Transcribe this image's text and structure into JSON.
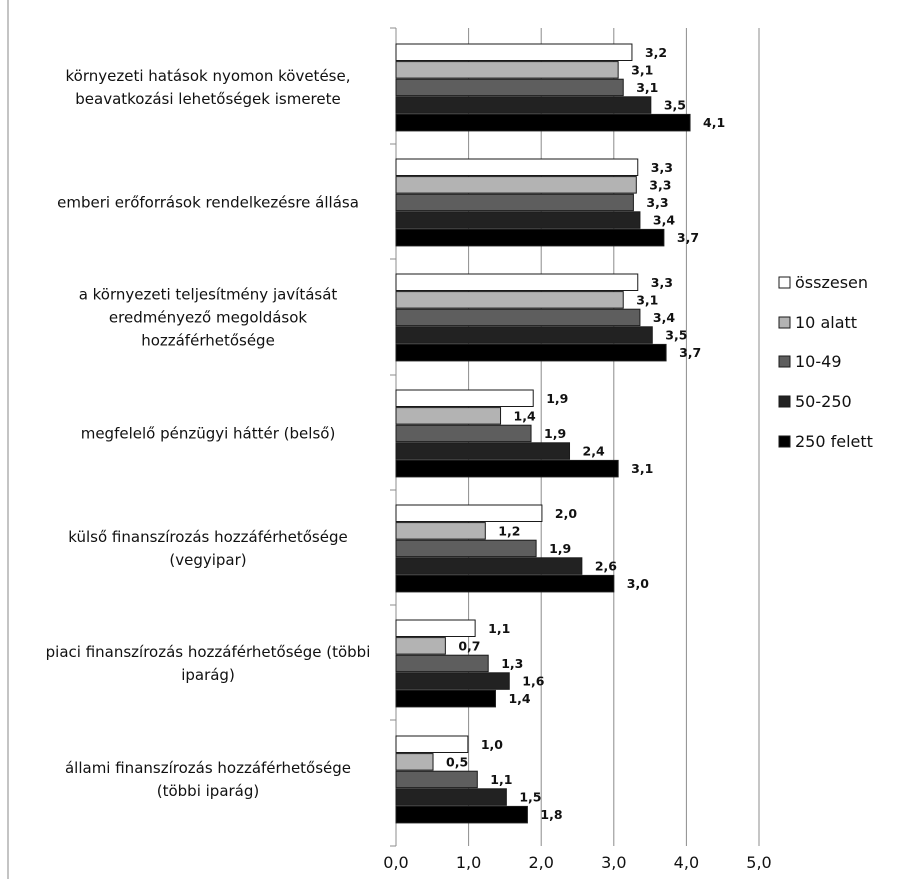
{
  "chart_data": {
    "type": "bar",
    "orientation": "horizontal",
    "categories": [
      [
        "környezeti hatások nyomon követése,",
        "beavatkozási lehetőségek ismerete"
      ],
      [
        "emberi erőforrások rendelkezésre állása"
      ],
      [
        "a környezeti teljesítmény  javítását",
        "eredményező megoldások",
        "hozzáférhetősége"
      ],
      [
        "megfelelő pénzügyi háttér (belső)"
      ],
      [
        "külső finanszírozás hozzáférhetősége",
        "(vegyipar)"
      ],
      [
        "piaci finanszírozás hozzáférhetősége (többi",
        "iparág)"
      ],
      [
        "állami finanszírozás hozzáférhetősége",
        "(többi iparág)"
      ]
    ],
    "series": [
      {
        "name": "összesen",
        "color": "#ffffff",
        "values": [
          3.25,
          3.33,
          3.33,
          1.89,
          2.01,
          1.09,
          0.99
        ],
        "labels": [
          "3,2",
          "3,3",
          "3,3",
          "1,9",
          "2,0",
          "1,1",
          "1,0"
        ]
      },
      {
        "name": "10 alatt",
        "color": "#b3b3b3",
        "values": [
          3.06,
          3.31,
          3.13,
          1.44,
          1.23,
          0.68,
          0.51
        ],
        "labels": [
          "3,1",
          "3,3",
          "3,1",
          "1,4",
          "1,2",
          "0,7",
          "0,5"
        ]
      },
      {
        "name": "10-49",
        "color": "#5e5e5e",
        "values": [
          3.13,
          3.27,
          3.36,
          1.86,
          1.93,
          1.27,
          1.12
        ],
        "labels": [
          "3,1",
          "3,3",
          "3,4",
          "1,9",
          "1,9",
          "1,3",
          "1,1"
        ]
      },
      {
        "name": "50-250",
        "color": "#222222",
        "values": [
          3.51,
          3.36,
          3.53,
          2.39,
          2.56,
          1.56,
          1.52
        ],
        "labels": [
          "3,5",
          "3,4",
          "3,5",
          "2,4",
          "2,6",
          "1,6",
          "1,5"
        ]
      },
      {
        "name": "250 felett",
        "color": "#000000",
        "values": [
          4.05,
          3.69,
          3.72,
          3.06,
          3.0,
          1.37,
          1.81
        ],
        "labels": [
          "4,1",
          "3,7",
          "3,7",
          "3,1",
          "3,0",
          "1,4",
          "1,8"
        ]
      }
    ],
    "xlim": [
      0,
      5
    ],
    "xticks": [
      "0,0",
      "1,0",
      "2,0",
      "3,0",
      "4,0",
      "5,0"
    ],
    "grid": true,
    "legend_position": "right"
  }
}
